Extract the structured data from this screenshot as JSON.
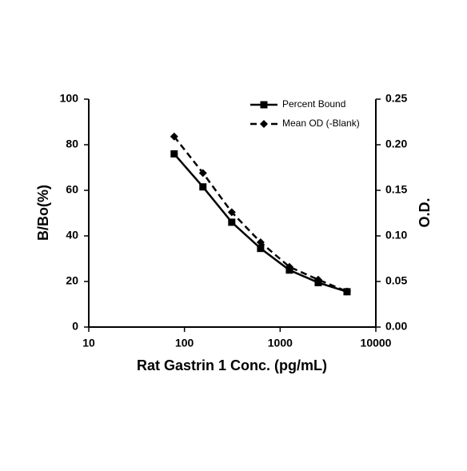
{
  "chart_data": {
    "type": "line",
    "xlabel": "Rat Gastrin 1 Conc. (pg/mL)",
    "ylabel": "B/Bo(%)",
    "y2label": "O.D.",
    "x": [
      78.1,
      156,
      312,
      625,
      1250,
      2500,
      5000
    ],
    "xscale": "log",
    "xlim": [
      10,
      10000
    ],
    "xticks": [
      10,
      100,
      1000,
      10000
    ],
    "ylim": [
      0,
      100
    ],
    "yticks": [
      0,
      20,
      40,
      60,
      80,
      100
    ],
    "y2lim": [
      0,
      0.25
    ],
    "y2ticks": [
      {
        "value": 0,
        "label": "0.00"
      },
      {
        "value": 0.05,
        "label": "0.05"
      },
      {
        "value": 0.1,
        "label": "0.10"
      },
      {
        "value": 0.15,
        "label": "0.15"
      },
      {
        "value": 0.2,
        "label": "0.20"
      },
      {
        "value": 0.25,
        "label": "0.25"
      }
    ],
    "legend": "upper right",
    "series": [
      {
        "name": "Percent Bound",
        "color": "#000000",
        "marker": "square",
        "dashed": false,
        "values": [
          76,
          61.5,
          46,
          34.5,
          25,
          19.5,
          15.5
        ]
      },
      {
        "name": "Mean OD (-Blank)",
        "color": "#000000",
        "marker": "diamond",
        "dashed": true,
        "axis": "y2",
        "values": [
          0.209,
          0.169,
          0.126,
          0.093,
          0.066,
          0.052,
          0.039
        ]
      }
    ]
  }
}
